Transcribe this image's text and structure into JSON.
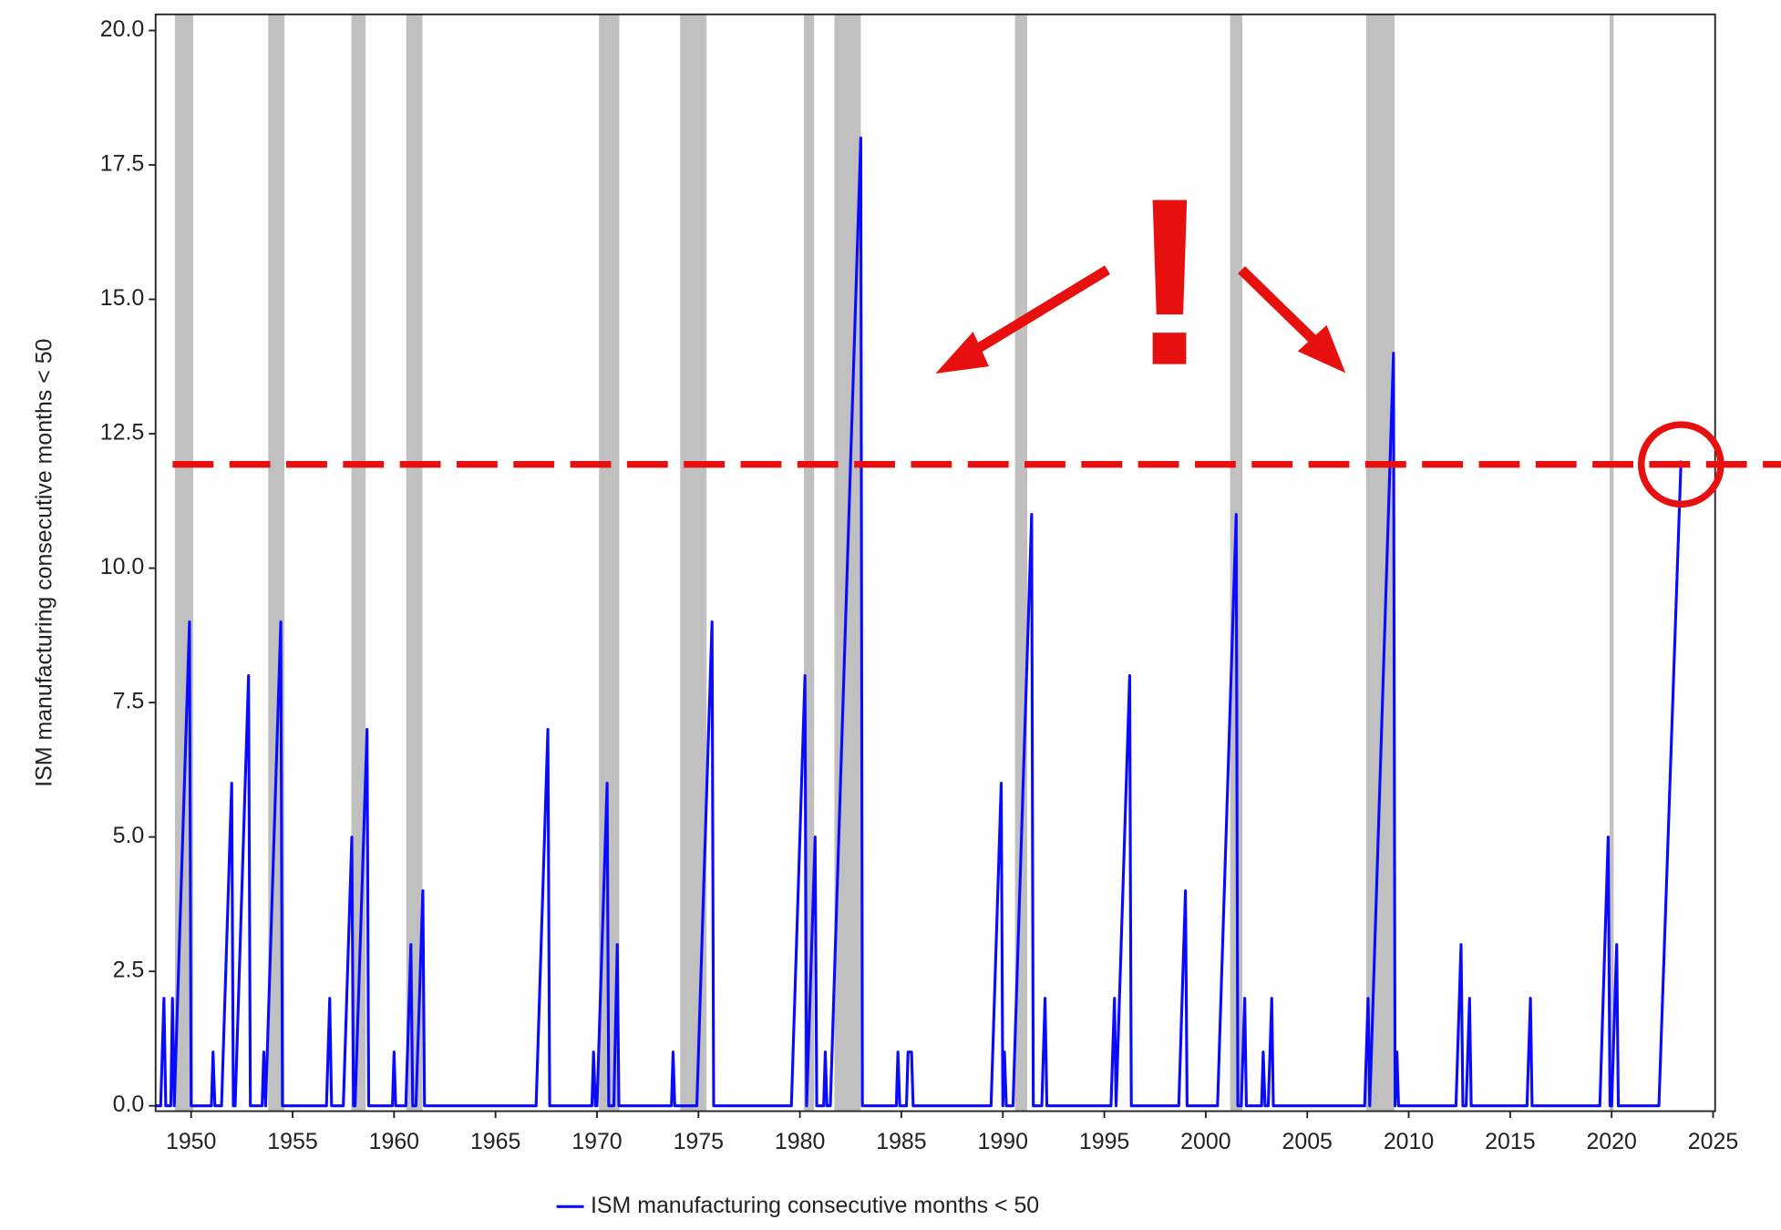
{
  "chart_data": {
    "type": "line",
    "y_label": "ISM manufacturing consecutive months < 50",
    "xlim": [
      1948.25,
      2025.1
    ],
    "ylim": [
      -0.1,
      20.3
    ],
    "xticks": [
      1950,
      1955,
      1960,
      1965,
      1970,
      1975,
      1980,
      1985,
      1990,
      1995,
      2000,
      2005,
      2010,
      2015,
      2020,
      2025
    ],
    "yticks": [
      {
        "value": 0,
        "label": "0.0"
      },
      2.5,
      {
        "value": 5,
        "label": "5.0"
      },
      7.5,
      {
        "value": 10,
        "label": "10.0"
      },
      12.5,
      {
        "value": 15,
        "label": "15.0"
      },
      17.5,
      {
        "value": 20,
        "label": "20.0"
      }
    ],
    "recessions": [
      [
        1949.2,
        1950.1
      ],
      [
        1953.8,
        1954.6
      ],
      [
        1957.9,
        1958.6
      ],
      [
        1960.6,
        1961.4
      ],
      [
        1970.1,
        1971.1
      ],
      [
        1974.1,
        1975.4
      ],
      [
        1980.2,
        1980.7
      ],
      [
        1981.7,
        1983.0
      ],
      [
        1990.6,
        1991.2
      ],
      [
        2001.2,
        2001.8
      ],
      [
        2007.9,
        2009.3
      ],
      [
        2019.9,
        2020.1
      ]
    ],
    "recession_color": "#c0c0c0",
    "threshold": 11.93,
    "threshold_color": "#e8100f",
    "annotation_text": "!",
    "legend": "bottom",
    "series": [
      {
        "name": "ISM manufacturing consecutive months < 50",
        "color": "#0a0aff",
        "x": [
          1948.25,
          1948.5,
          1948.66,
          1948.75,
          1949.0,
          1949.08,
          1949.17,
          1949.92,
          1950.0,
          1951.0,
          1951.08,
          1951.17,
          1951.5,
          1952.0,
          1952.08,
          1952.17,
          1952.83,
          1952.92,
          1953.5,
          1953.58,
          1953.67,
          1954.42,
          1954.5,
          1956.67,
          1956.83,
          1956.92,
          1957.5,
          1957.92,
          1958.0,
          1958.08,
          1958.67,
          1958.75,
          1959.92,
          1960.0,
          1960.08,
          1960.58,
          1960.83,
          1960.92,
          1961.08,
          1961.42,
          1961.5,
          1967.0,
          1967.58,
          1967.67,
          1969.75,
          1969.83,
          1969.92,
          1970.0,
          1970.5,
          1970.58,
          1970.83,
          1971.0,
          1971.08,
          1973.67,
          1973.75,
          1973.83,
          1974.92,
          1975.67,
          1975.75,
          1979.58,
          1980.25,
          1980.33,
          1980.75,
          1980.83,
          1981.17,
          1981.25,
          1981.33,
          1981.5,
          1983.0,
          1983.08,
          1984.75,
          1984.83,
          1984.92,
          1985.25,
          1985.33,
          1985.5,
          1985.58,
          1989.42,
          1989.92,
          1990.0,
          1990.08,
          1990.17,
          1990.5,
          1991.42,
          1991.5,
          1991.92,
          1992.08,
          1992.17,
          1995.33,
          1995.5,
          1995.58,
          1996.25,
          1996.33,
          1998.67,
          1999.0,
          1999.08,
          2000.58,
          2001.5,
          2001.58,
          2001.75,
          2001.92,
          2002.0,
          2002.75,
          2002.83,
          2002.92,
          2003.08,
          2003.25,
          2003.33,
          2007.83,
          2008.0,
          2008.08,
          2009.25,
          2009.33,
          2009.42,
          2009.5,
          2012.33,
          2012.58,
          2012.67,
          2012.83,
          2013.0,
          2013.08,
          2015.83,
          2016.0,
          2016.08,
          2019.42,
          2019.83,
          2019.92,
          2020.0,
          2020.25,
          2020.33,
          2022.33,
          2022.42,
          2023.42
        ],
        "values": [
          0,
          0,
          2,
          0,
          0,
          2,
          0,
          9,
          0,
          0,
          1,
          0,
          0,
          6,
          0,
          0,
          8,
          0,
          0,
          1,
          0,
          9,
          0,
          0,
          2,
          0,
          0,
          5,
          0,
          0,
          7,
          0,
          0,
          1,
          0,
          0,
          3,
          0,
          0,
          4,
          0,
          0,
          7,
          0,
          0,
          1,
          0,
          0,
          6,
          0,
          0,
          3,
          0,
          0,
          1,
          0,
          0,
          9,
          0,
          0,
          8,
          0,
          5,
          0,
          0,
          1,
          0,
          0,
          18,
          0,
          0,
          1,
          0,
          0,
          1,
          1,
          0,
          0,
          6,
          0,
          1,
          0,
          0,
          11,
          0,
          0,
          2,
          0,
          0,
          2,
          0,
          8,
          0,
          0,
          4,
          0,
          0,
          11,
          0,
          0,
          2,
          0,
          0,
          1,
          0,
          0,
          2,
          0,
          0,
          2,
          0,
          14,
          0,
          1,
          0,
          0,
          3,
          0,
          0,
          2,
          0,
          0,
          2,
          0,
          0,
          5,
          0,
          0,
          3,
          0,
          0,
          1,
          12
        ]
      }
    ]
  }
}
